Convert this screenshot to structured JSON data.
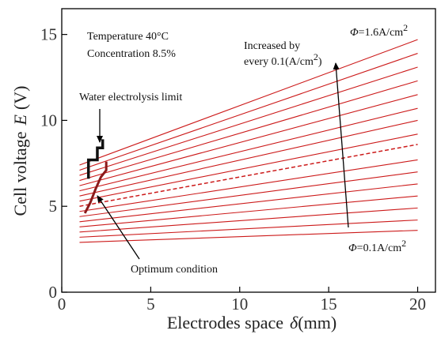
{
  "chart_data": {
    "type": "line",
    "xlabel": "Electrodes space",
    "xlabel_symbol": "δ",
    "xlabel_unit": "(mm)",
    "ylabel": "Cell voltage",
    "ylabel_symbol": "E",
    "ylabel_unit": "(V)",
    "xlim": [
      0,
      21
    ],
    "ylim": [
      0,
      16.5
    ],
    "x_ticks": [
      "0",
      "5",
      "10",
      "15",
      "20"
    ],
    "y_ticks": [
      "0",
      "5",
      "10",
      "15"
    ],
    "x_tick_values": [
      0,
      5,
      10,
      15,
      20
    ],
    "y_tick_values": [
      0,
      5,
      10,
      15
    ],
    "grid": false,
    "series_color": "#cc1a1a",
    "x": [
      1,
      20
    ],
    "series": [
      {
        "current_density": 0.1,
        "values": [
          2.9,
          3.6
        ]
      },
      {
        "current_density": 0.2,
        "values": [
          3.2,
          4.2
        ]
      },
      {
        "current_density": 0.3,
        "values": [
          3.5,
          4.9
        ]
      },
      {
        "current_density": 0.4,
        "values": [
          3.8,
          5.6
        ]
      },
      {
        "current_density": 0.5,
        "values": [
          4.1,
          6.3
        ]
      },
      {
        "current_density": 0.6,
        "values": [
          4.4,
          7.0
        ]
      },
      {
        "current_density": 0.7,
        "values": [
          4.7,
          7.7
        ]
      },
      {
        "current_density": 0.8,
        "values": [
          5.0,
          8.6
        ],
        "dashed": true
      },
      {
        "current_density": 0.9,
        "values": [
          5.3,
          9.2
        ]
      },
      {
        "current_density": 1.0,
        "values": [
          5.6,
          10.0
        ]
      },
      {
        "current_density": 1.1,
        "values": [
          5.9,
          10.7
        ]
      },
      {
        "current_density": 1.2,
        "values": [
          6.2,
          11.5
        ]
      },
      {
        "current_density": 1.3,
        "values": [
          6.5,
          12.3
        ]
      },
      {
        "current_density": 1.4,
        "values": [
          6.8,
          13.1
        ]
      },
      {
        "current_density": 1.5,
        "values": [
          7.1,
          13.9
        ]
      },
      {
        "current_density": 1.6,
        "values": [
          7.4,
          14.7
        ]
      }
    ],
    "water_electrolysis_limit": {
      "color": "#111111",
      "points": [
        [
          1.5,
          6.6
        ],
        [
          1.5,
          7.7
        ],
        [
          2.0,
          7.7
        ],
        [
          2.0,
          8.4
        ],
        [
          2.3,
          8.4
        ],
        [
          2.3,
          8.9
        ]
      ]
    },
    "optimum_condition": {
      "color": "#8b1a1a",
      "points": [
        [
          1.3,
          4.6
        ],
        [
          1.6,
          5.2
        ],
        [
          1.9,
          6.0
        ],
        [
          2.2,
          6.7
        ],
        [
          2.5,
          7.1
        ],
        [
          2.5,
          7.6
        ]
      ]
    },
    "annotations": {
      "condition_temperature": "Temperature 40°C",
      "condition_concentration": "Concentration 8.5%",
      "increase_line1": "Increased by",
      "increase_line2": "every 0.1(A/cm",
      "increase_line2_sup": "2",
      "increase_line2_end": ")",
      "top_label_symbol": "Φ",
      "top_label_value": "=1.6A/cm",
      "top_label_sup": "2",
      "bottom_label_symbol": "Φ",
      "bottom_label_value": "=0.1A/cm",
      "bottom_label_sup": "2",
      "water_limit": "Water electrolysis limit",
      "optimum": "Optimum condition"
    }
  }
}
